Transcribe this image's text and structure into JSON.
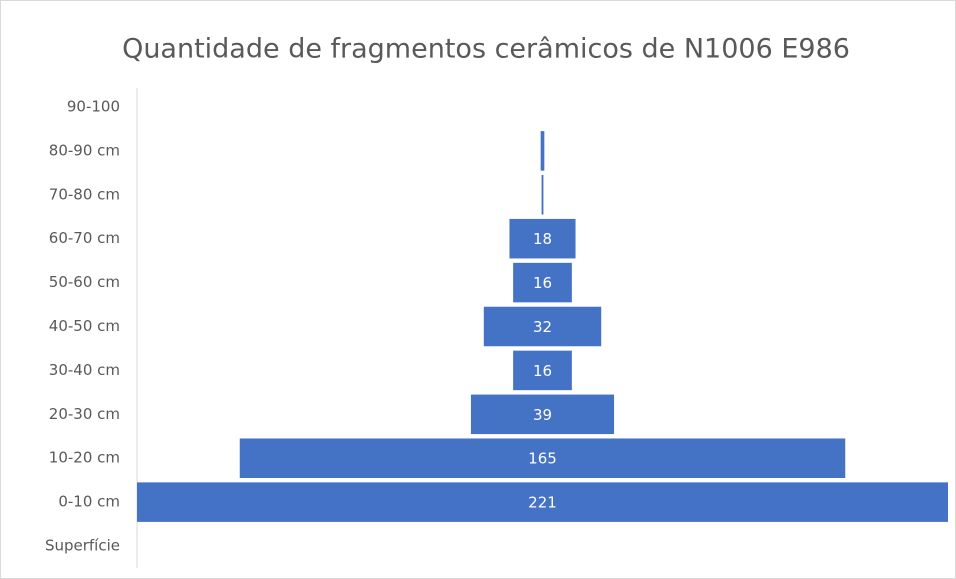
{
  "chart_data": {
    "type": "funnel",
    "title": "Quantidade de fragmentos cerâmicos de N1006 E986",
    "categories": [
      "90-100",
      "80-90 cm",
      "70-80 cm",
      "60-70 cm",
      "50-60 cm",
      "40-50 cm",
      "30-40 cm",
      "20-30 cm",
      "10-20 cm",
      "0-10 cm",
      "Superfície"
    ],
    "values": [
      null,
      1,
      0.5,
      18,
      16,
      32,
      16,
      39,
      165,
      221,
      null
    ],
    "value_labels": [
      null,
      null,
      null,
      "18",
      "16",
      "32",
      "16",
      "39",
      "165",
      "221",
      null
    ],
    "color": "#4472c4"
  }
}
